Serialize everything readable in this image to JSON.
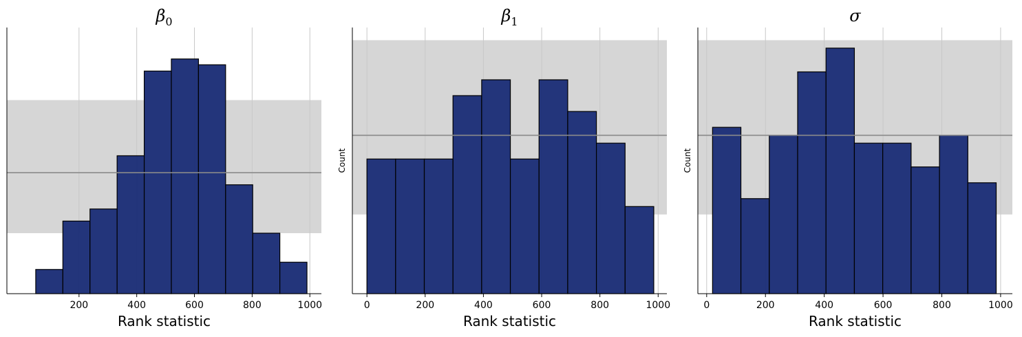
{
  "colors": {
    "bar_fill": "#1f3178",
    "bar_edge": "#000000",
    "band_fill": "#d6d6d6",
    "mean_line": "#8a8a8a",
    "grid": "#c8c8c8"
  },
  "chart_data": [
    {
      "type": "bar",
      "title": "β",
      "title_sub": "0",
      "xlabel": "Rank statistic",
      "ylabel": "",
      "grid": true,
      "xlim": [
        -50,
        1040
      ],
      "ylim": [
        0,
        5.5
      ],
      "xticks": [
        200,
        400,
        600,
        800,
        1000
      ],
      "xtick_labels": [
        "200",
        "400",
        "600",
        "800",
        "1000"
      ],
      "bin_edges": [
        50,
        144,
        238,
        332,
        426,
        520,
        614,
        708,
        802,
        896,
        990
      ],
      "counts": [
        0.5,
        1.5,
        1.75,
        2.85,
        4.6,
        4.85,
        4.73,
        2.25,
        1.25,
        0.65
      ],
      "band": [
        1.25,
        4.0
      ],
      "mean": 2.5
    },
    {
      "type": "bar",
      "title": "β",
      "title_sub": "1",
      "xlabel": "Rank statistic",
      "ylabel": "Count",
      "grid": true,
      "xlim": [
        -50,
        1030
      ],
      "ylim": [
        0,
        8.4
      ],
      "xticks": [
        0,
        200,
        400,
        600,
        800,
        1000
      ],
      "xtick_labels": [
        "0",
        "200",
        "400",
        "600",
        "800",
        "1000"
      ],
      "bin_edges": [
        0,
        98.5,
        197,
        295.5,
        394,
        492.5,
        591,
        689.5,
        788,
        886.5,
        985
      ],
      "counts": [
        4.25,
        4.25,
        4.25,
        6.25,
        6.75,
        4.25,
        6.75,
        5.75,
        4.75,
        2.75
      ],
      "band": [
        2.5,
        8.0
      ],
      "mean": 5.0
    },
    {
      "type": "bar",
      "title": "σ",
      "title_sub": "",
      "xlabel": "Rank statistic",
      "ylabel": "Count",
      "grid": true,
      "xlim": [
        -30,
        1040
      ],
      "ylim": [
        0,
        8.4
      ],
      "xticks": [
        0,
        200,
        400,
        600,
        800,
        1000
      ],
      "xtick_labels": [
        "0",
        "200",
        "400",
        "600",
        "800",
        "1000"
      ],
      "bin_edges": [
        20,
        116.5,
        213,
        309.5,
        406,
        502.5,
        599,
        695.5,
        792,
        888.5,
        985
      ],
      "counts": [
        5.25,
        3.0,
        5.0,
        7.0,
        7.75,
        4.75,
        4.75,
        4.0,
        5.0,
        3.5
      ],
      "band": [
        2.5,
        8.0
      ],
      "mean": 5.0
    }
  ]
}
